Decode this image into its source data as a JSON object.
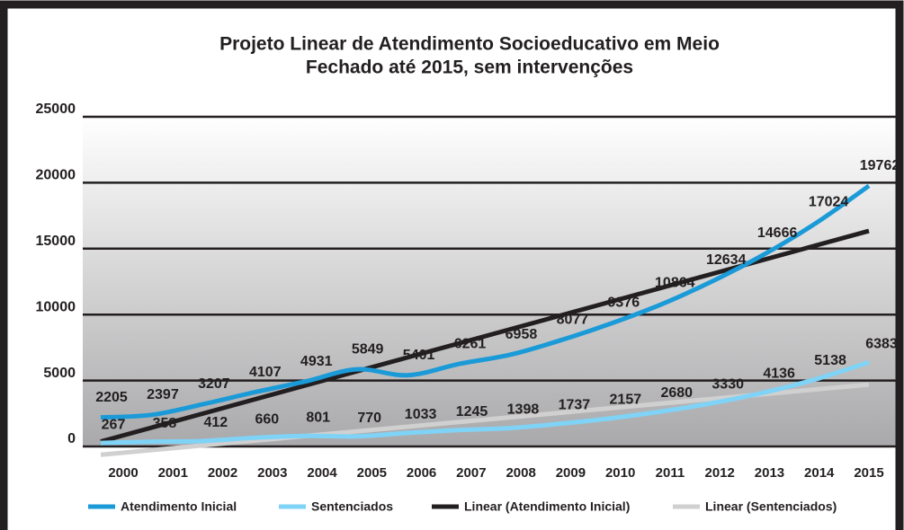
{
  "chart_data": {
    "type": "line",
    "title": "Projeto Linear de Atendimento Socioeducativo em Meio",
    "subtitle": "Fechado até 2015, sem intervenções",
    "categories": [
      "2000",
      "2001",
      "2002",
      "2003",
      "2004",
      "2005",
      "2006",
      "2007",
      "2008",
      "2009",
      "2010",
      "2011",
      "2012",
      "2013",
      "2014",
      "2015"
    ],
    "series": [
      {
        "name": "Atendimento Inicial",
        "color": "#1b9ad8",
        "values": [
          2205,
          2397,
          3207,
          4107,
          4931,
          5849,
          5401,
          6261,
          6958,
          8077,
          9376,
          10864,
          12634,
          14666,
          17024,
          19762
        ]
      },
      {
        "name": "Sentenciados",
        "color": "#7fd3f7",
        "values": [
          267,
          358,
          412,
          660,
          801,
          770,
          1033,
          1245,
          1398,
          1737,
          2157,
          2680,
          3330,
          4136,
          5138,
          6383
        ]
      }
    ],
    "trendlines": [
      {
        "name": "Linear (Atendimento Inicial)",
        "color": "#231f20"
      },
      {
        "name": "Linear (Sentenciados)",
        "color": "#d0d0d0"
      }
    ],
    "ylim": [
      0,
      25000
    ],
    "yticks": [
      0,
      5000,
      10000,
      15000,
      20000,
      25000
    ],
    "grid": true
  }
}
